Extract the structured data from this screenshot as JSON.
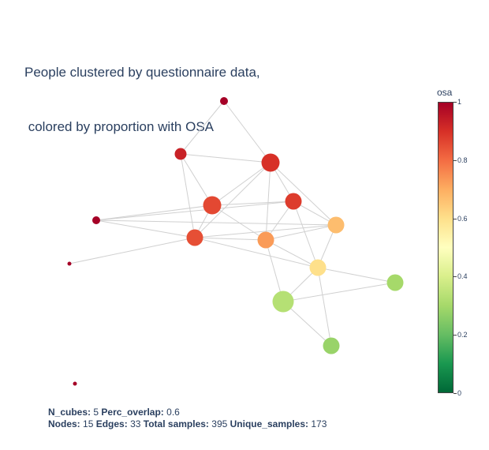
{
  "title": {
    "line1": "People clustered by questionnaire data,",
    "line2": " colored by proportion with OSA"
  },
  "colorbar": {
    "title": "osa",
    "ticks": [
      "1",
      "0.8",
      "0.6",
      "0.4",
      "0.2",
      "0"
    ],
    "colorscale": [
      "#a50026",
      "#d73027",
      "#f46d43",
      "#fdae61",
      "#fee08b",
      "#ffffbf",
      "#d9ef8b",
      "#a6d96a",
      "#66bd63",
      "#1a9850",
      "#006837"
    ]
  },
  "footer": {
    "n_cubes_label": "N_cubes:",
    "n_cubes": "5",
    "perc_overlap_label": "Perc_overlap:",
    "perc_overlap": "0.6",
    "nodes_label": "Nodes:",
    "nodes": "15",
    "edges_label": "Edges:",
    "edges": "33",
    "total_samples_label": "Total samples:",
    "total_samples": "395",
    "unique_samples_label": "Unique_samples:",
    "unique_samples": "173"
  },
  "graph": {
    "edge_color": "#d0d0d0",
    "nodes": [
      {
        "id": 0,
        "osa": 1.0,
        "size": 2
      },
      {
        "id": 1,
        "osa": 0.93,
        "size": 3
      },
      {
        "id": 2,
        "osa": 0.9,
        "size": 5
      },
      {
        "id": 3,
        "osa": 0.88,
        "size": 4
      },
      {
        "id": 4,
        "osa": 0.86,
        "size": 5
      },
      {
        "id": 5,
        "osa": 0.85,
        "size": 4
      },
      {
        "id": 6,
        "osa": 1.0,
        "size": 2
      },
      {
        "id": 7,
        "osa": 1.0,
        "size": 1
      },
      {
        "id": 8,
        "osa": 0.73,
        "size": 4
      },
      {
        "id": 9,
        "osa": 0.67,
        "size": 4
      },
      {
        "id": 10,
        "osa": 0.6,
        "size": 4
      },
      {
        "id": 11,
        "osa": 0.3,
        "size": 4
      },
      {
        "id": 12,
        "osa": 0.33,
        "size": 6
      },
      {
        "id": 13,
        "osa": 0.28,
        "size": 4
      },
      {
        "id": 14,
        "osa": 1.0,
        "size": 1
      }
    ],
    "edges": [
      [
        0,
        1
      ],
      [
        0,
        2
      ],
      [
        1,
        2
      ],
      [
        1,
        4
      ],
      [
        1,
        5
      ],
      [
        2,
        3
      ],
      [
        2,
        4
      ],
      [
        2,
        8
      ],
      [
        2,
        9
      ],
      [
        2,
        5
      ],
      [
        3,
        9
      ],
      [
        3,
        10
      ],
      [
        4,
        5
      ],
      [
        4,
        6
      ],
      [
        4,
        8
      ],
      [
        4,
        3
      ],
      [
        5,
        6
      ],
      [
        5,
        7
      ],
      [
        5,
        8
      ],
      [
        5,
        9
      ],
      [
        5,
        10
      ],
      [
        6,
        3
      ],
      [
        6,
        9
      ],
      [
        8,
        10
      ],
      [
        8,
        12
      ],
      [
        8,
        9
      ],
      [
        9,
        10
      ],
      [
        10,
        11
      ],
      [
        10,
        12
      ],
      [
        10,
        13
      ],
      [
        12,
        11
      ],
      [
        12,
        13
      ],
      [
        3,
        8
      ]
    ]
  }
}
